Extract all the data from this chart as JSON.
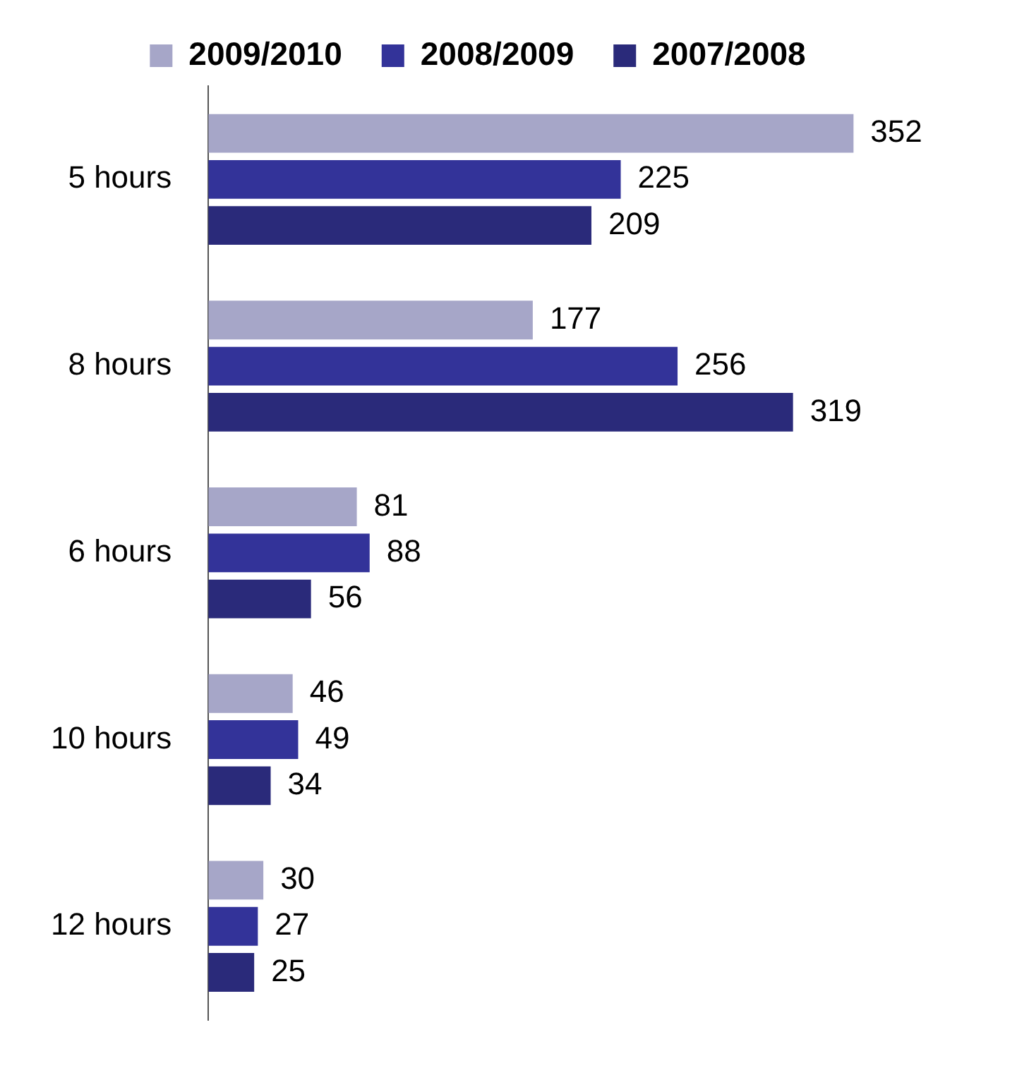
{
  "chart_data": {
    "type": "bar",
    "orientation": "horizontal",
    "categories": [
      "5 hours",
      "8 hours",
      "6 hours",
      "10 hours",
      "12 hours"
    ],
    "series": [
      {
        "name": "2009/2010",
        "color": "#a6a6c8",
        "values": [
          352,
          177,
          81,
          46,
          30
        ]
      },
      {
        "name": "2008/2009",
        "color": "#333399",
        "values": [
          225,
          256,
          88,
          49,
          27
        ]
      },
      {
        "name": "2007/2008",
        "color": "#2a2a7a",
        "values": [
          209,
          319,
          56,
          34,
          25
        ]
      }
    ],
    "data_labels": true,
    "legend": "top"
  }
}
